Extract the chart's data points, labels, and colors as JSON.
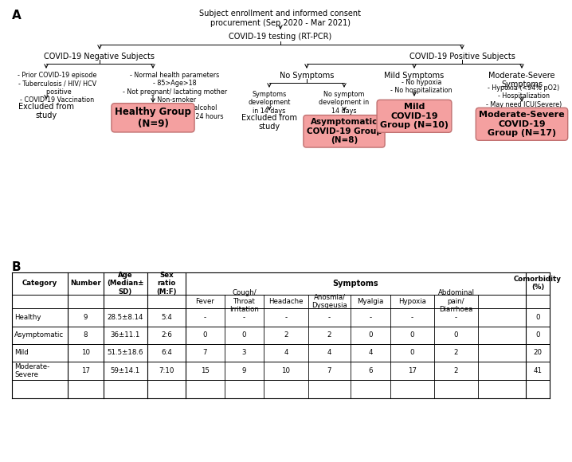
{
  "panel_a_label": "A",
  "panel_b_label": "B",
  "top_box": "Subject enrollment and informed consent\nprocurement (Sep 2020 - Mar 2021)",
  "pcr_box": "COVID-19 testing (RT-PCR)",
  "neg_label": "COVID-19 Negative Subjects",
  "pos_label": "COVID-19 Positive Subjects",
  "neg_left_text": "- Prior COVID-19 episode\n- Tuberculosis / HIV/ HCV\n  positive\n- COVID-19 Vaccination",
  "neg_left_bottom": "Excluded from\nstudy",
  "neg_right_text": "- Normal health parameters\n- 85>Age>18\n- Not pregnant/ lactating mother\n- Non-smoker\n- No medication or alcohol\n  consumption in last 24 hours",
  "healthy_box": "Healthy Group\n(N=9)",
  "no_symptoms_label": "No Symptoms",
  "mild_symptoms_label": "Mild Symptoms",
  "mod_severe_label": "Moderate-Severe\nSymptoms",
  "no_symp_left": "Symptoms\ndevelopment\nin 14 days",
  "no_symp_left_bottom": "Excluded from\nstudy",
  "no_symp_right": "No symptom\ndevelopment in\n14 days",
  "asymp_box": "Asymptomatic\nCOVID-19 Group\n(N=8)",
  "mild_criteria": "- No hypoxia\n- No hospitalization",
  "mild_box": "Mild\nCOVID-19\nGroup (N=10)",
  "mod_criteria": "- Hypoxia (<94% pO2)\n- Hospitalization\n- May need ICU(Severe)\n- No ARDS",
  "mod_box": "Moderate-Severe\nCOVID-19\nGroup (N=17)",
  "pink_color": "#F4A0A0",
  "pink_border": "#C07070",
  "table_categories": [
    "Healthy",
    "Asymptomatic",
    "Mild",
    "Moderate-\nSevere"
  ],
  "table_numbers": [
    "9",
    "8",
    "10",
    "17"
  ],
  "table_ages": [
    "28.5±8.14",
    "36±11.1",
    "51.5±18.6",
    "59±14.1"
  ],
  "table_sex": [
    "5:4",
    "2:6",
    "6:4",
    "7:10"
  ],
  "table_fever": [
    "-",
    "0",
    "7",
    "15"
  ],
  "table_cough": [
    "-",
    "0",
    "3",
    "9"
  ],
  "table_headache": [
    "-",
    "2",
    "4",
    "10"
  ],
  "table_anosmia": [
    "-",
    "2",
    "4",
    "7"
  ],
  "table_myalgia": [
    "-",
    "0",
    "4",
    "6"
  ],
  "table_hypoxia": [
    "-",
    "0",
    "0",
    "17"
  ],
  "table_abdominal": [
    "-",
    "0",
    "2",
    "2"
  ],
  "table_comorbidity": [
    "0",
    "0",
    "20",
    "41"
  ]
}
